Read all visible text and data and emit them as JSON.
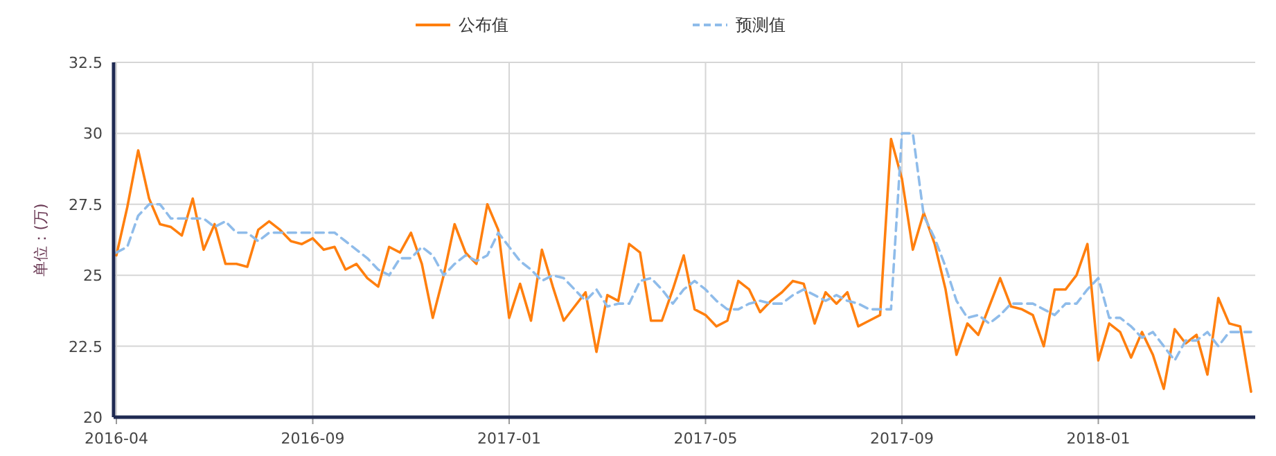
{
  "chart_data": {
    "type": "line",
    "ylabel": "单位：(万)",
    "categories": [
      "2016-04",
      null,
      null,
      null,
      null,
      null,
      null,
      null,
      null,
      null,
      null,
      null,
      null,
      null,
      null,
      null,
      null,
      null,
      "2016-09",
      null,
      null,
      null,
      null,
      null,
      null,
      null,
      null,
      null,
      null,
      null,
      null,
      null,
      null,
      null,
      null,
      null,
      "2017-01",
      null,
      null,
      null,
      null,
      null,
      null,
      null,
      null,
      null,
      null,
      null,
      null,
      null,
      null,
      null,
      null,
      null,
      "2017-05",
      null,
      null,
      null,
      null,
      null,
      null,
      null,
      null,
      null,
      null,
      null,
      null,
      null,
      null,
      null,
      null,
      null,
      "2017-09",
      null,
      null,
      null,
      null,
      null,
      null,
      null,
      null,
      null,
      null,
      null,
      null,
      null,
      null,
      null,
      null,
      null,
      "2018-01",
      null,
      null,
      null,
      null,
      null,
      null,
      null,
      null,
      null,
      null,
      null,
      null,
      null,
      null
    ],
    "series": [
      {
        "name": "公布值",
        "color": "#ff7f0e",
        "line_style": "solid",
        "values": [
          25.7,
          27.4,
          29.4,
          27.7,
          26.8,
          26.7,
          26.4,
          27.7,
          25.9,
          26.8,
          25.4,
          25.4,
          25.3,
          26.6,
          26.9,
          26.6,
          26.2,
          26.1,
          26.3,
          25.9,
          26.0,
          25.2,
          25.4,
          24.9,
          24.6,
          26.0,
          25.8,
          26.5,
          25.4,
          23.5,
          25.0,
          26.8,
          25.8,
          25.4,
          27.5,
          26.6,
          23.5,
          24.7,
          23.4,
          25.9,
          24.6,
          23.4,
          23.9,
          24.4,
          22.3,
          24.3,
          24.1,
          26.1,
          25.8,
          23.4,
          23.4,
          24.5,
          25.7,
          23.8,
          23.6,
          23.2,
          23.4,
          24.8,
          24.5,
          23.7,
          24.1,
          24.4,
          24.8,
          24.7,
          23.3,
          24.4,
          24.0,
          24.4,
          23.2,
          23.4,
          23.6,
          29.8,
          28.4,
          25.9,
          27.2,
          26.1,
          24.5,
          22.2,
          23.3,
          22.9,
          23.9,
          24.9,
          23.9,
          23.8,
          23.6,
          22.5,
          24.5,
          24.5,
          25.0,
          26.1,
          22.0,
          23.3,
          23.0,
          22.1,
          23.0,
          22.2,
          21.0,
          23.1,
          22.6,
          22.9,
          21.5,
          24.2,
          23.3,
          23.2,
          20.9
        ]
      },
      {
        "name": "预测值",
        "color": "#8fbcea",
        "line_style": "dashed",
        "values": [
          25.8,
          26.0,
          27.1,
          27.5,
          27.5,
          27.0,
          27.0,
          27.0,
          27.0,
          26.7,
          26.9,
          26.5,
          26.5,
          26.2,
          26.5,
          26.5,
          26.5,
          26.5,
          26.5,
          26.5,
          26.5,
          26.2,
          25.9,
          25.6,
          25.2,
          25.0,
          25.6,
          25.6,
          26.0,
          25.7,
          25.0,
          25.4,
          25.7,
          25.5,
          25.7,
          26.5,
          26.0,
          25.5,
          25.2,
          24.8,
          25.0,
          24.9,
          24.5,
          24.1,
          24.5,
          23.9,
          24.0,
          24.0,
          24.8,
          24.9,
          24.5,
          24.0,
          24.5,
          24.8,
          24.5,
          24.1,
          23.8,
          23.8,
          24.0,
          24.1,
          24.0,
          24.0,
          24.3,
          24.5,
          24.3,
          24.1,
          24.3,
          24.1,
          24.0,
          23.8,
          23.8,
          23.8,
          30.0,
          30.0,
          27.1,
          26.3,
          25.3,
          24.1,
          23.5,
          23.6,
          23.3,
          23.6,
          24.0,
          24.0,
          24.0,
          23.8,
          23.6,
          24.0,
          24.0,
          24.5,
          24.9,
          23.5,
          23.5,
          23.2,
          22.8,
          23.0,
          22.5,
          22.0,
          22.7,
          22.7,
          23.0,
          22.5,
          23.0,
          23.0,
          23.0
        ]
      }
    ],
    "ylim": [
      20,
      32.5
    ],
    "yticks": [
      20,
      22.5,
      25,
      27.5,
      30,
      32.5
    ],
    "grid": true,
    "legend": "top"
  }
}
